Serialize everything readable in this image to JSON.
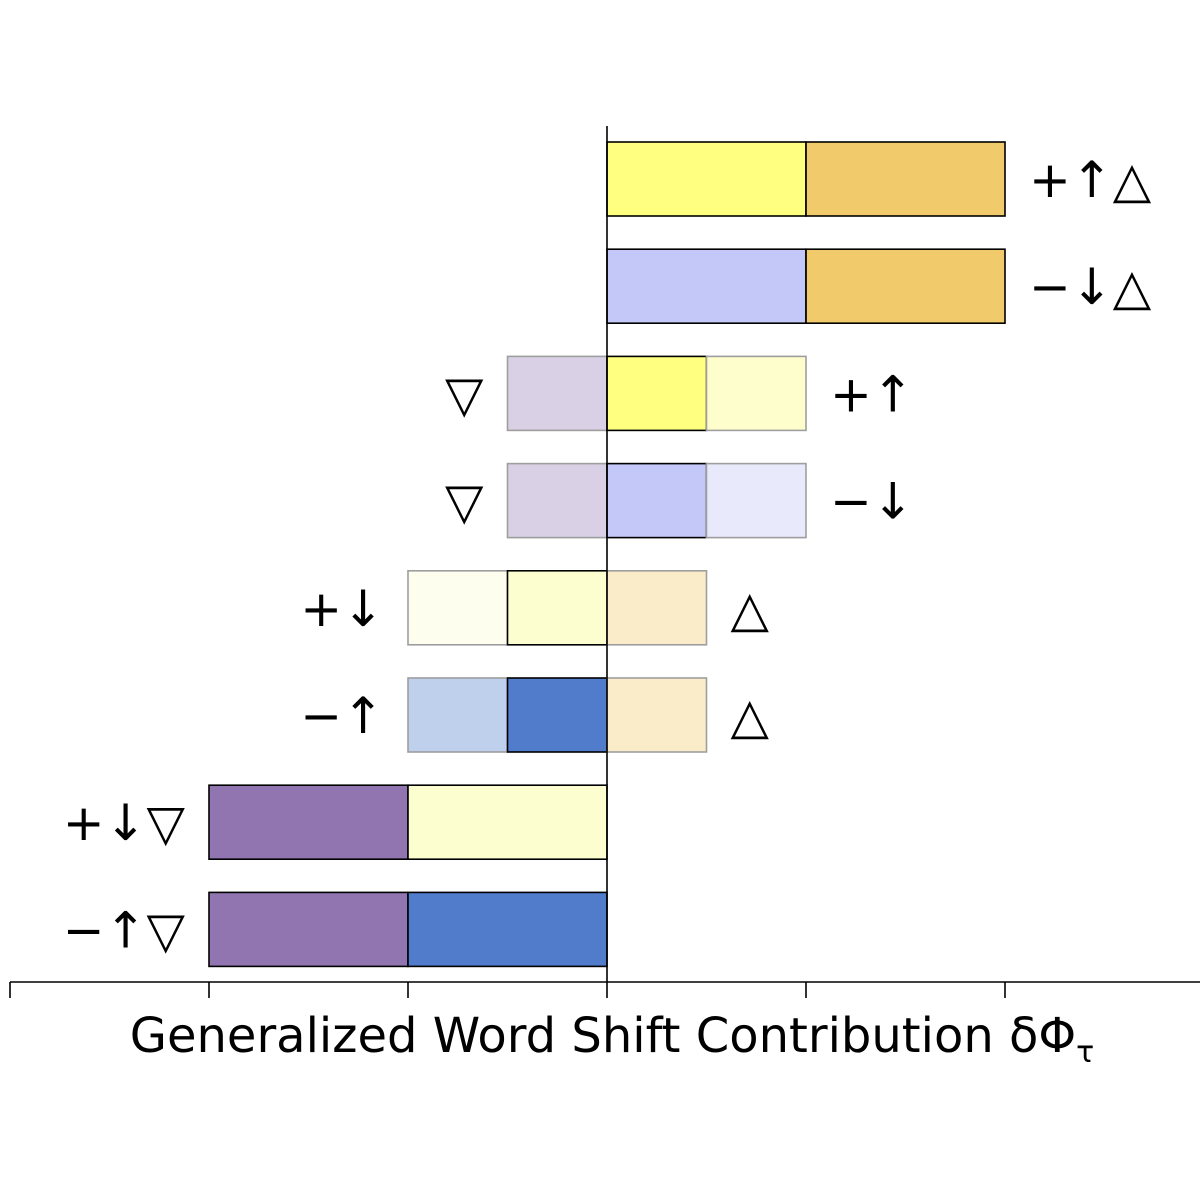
{
  "chart_data": {
    "type": "bar",
    "orientation": "horizontal",
    "stacked": true,
    "xlabel": "Generalized Word Shift Contribution δΦ",
    "xlabel_subscript": "τ",
    "xlim": [
      -3,
      3
    ],
    "xticks": [
      -3,
      -2,
      -1,
      0,
      1,
      2,
      3
    ],
    "xtick_labels_shown": false,
    "grid": false,
    "categories": [
      "+↑△",
      "−↓△",
      "+↑",
      "−↓",
      "+↓",
      "−↑",
      "+↓▽",
      "−↑▽"
    ],
    "rows": [
      {
        "label_right": "+↑△",
        "label_left": "",
        "segments": [
          {
            "start": 0,
            "end": 1,
            "color": "#ffff80",
            "opacity": 1,
            "edge": "#000000"
          },
          {
            "start": 1,
            "end": 2,
            "color": "#ecb939",
            "opacity": 0.75,
            "edge": "#000000"
          }
        ]
      },
      {
        "label_right": "−↓△",
        "label_left": "",
        "segments": [
          {
            "start": 0,
            "end": 1,
            "color": "#c4c8f8",
            "opacity": 1,
            "edge": "#000000"
          },
          {
            "start": 1,
            "end": 2,
            "color": "#ecb939",
            "opacity": 0.75,
            "edge": "#000000"
          }
        ]
      },
      {
        "label_right": "+↑",
        "label_left": "▽",
        "segments": [
          {
            "start": -0.5,
            "end": 0,
            "color": "#d9d0e6",
            "opacity": 1,
            "edge": "#9e9e9e"
          },
          {
            "start": 0,
            "end": 0.5,
            "color": "#ffff80",
            "opacity": 1,
            "edge": "#000000"
          },
          {
            "start": 0.5,
            "end": 1,
            "color": "#fefecd",
            "opacity": 1,
            "edge": "#9e9e9e"
          }
        ]
      },
      {
        "label_right": "−↓",
        "label_left": "▽",
        "segments": [
          {
            "start": -0.5,
            "end": 0,
            "color": "#d9d0e6",
            "opacity": 1,
            "edge": "#9e9e9e"
          },
          {
            "start": 0,
            "end": 0.5,
            "color": "#c4c8f8",
            "opacity": 1,
            "edge": "#000000"
          },
          {
            "start": 0.5,
            "end": 1,
            "color": "#e8eafc",
            "opacity": 1,
            "edge": "#9e9e9e"
          }
        ]
      },
      {
        "label_right": "△",
        "label_left": "+↓",
        "segments": [
          {
            "start": -1,
            "end": -0.5,
            "color": "#fefeef",
            "opacity": 1,
            "edge": "#9e9e9e"
          },
          {
            "start": -0.5,
            "end": 0,
            "color": "#fdfed0",
            "opacity": 1,
            "edge": "#000000"
          },
          {
            "start": 0,
            "end": 0.5,
            "color": "#faecc8",
            "opacity": 1,
            "edge": "#9e9e9e"
          }
        ]
      },
      {
        "label_right": "△",
        "label_left": "−↑",
        "segments": [
          {
            "start": -1,
            "end": -0.5,
            "color": "#bed0ec",
            "opacity": 1,
            "edge": "#9e9e9e"
          },
          {
            "start": -0.5,
            "end": 0,
            "color": "#517ccb",
            "opacity": 1,
            "edge": "#000000"
          },
          {
            "start": 0,
            "end": 0.5,
            "color": "#faecc8",
            "opacity": 1,
            "edge": "#9e9e9e"
          }
        ]
      },
      {
        "label_right": "",
        "label_left": "+↓▽",
        "segments": [
          {
            "start": -2,
            "end": -1,
            "color": "#9175b0",
            "opacity": 1,
            "edge": "#000000"
          },
          {
            "start": -1,
            "end": 0,
            "color": "#fdfed0",
            "opacity": 1,
            "edge": "#000000"
          }
        ]
      },
      {
        "label_right": "",
        "label_left": "−↑▽",
        "segments": [
          {
            "start": -2,
            "end": -1,
            "color": "#9175b0",
            "opacity": 1,
            "edge": "#000000"
          },
          {
            "start": -1,
            "end": 0,
            "color": "#517ccb",
            "opacity": 1,
            "edge": "#000000"
          }
        ]
      }
    ]
  }
}
